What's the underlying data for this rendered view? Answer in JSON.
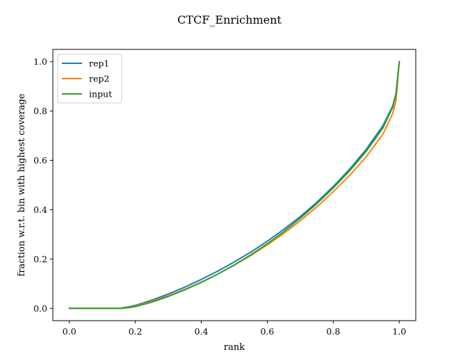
{
  "chart_data": {
    "type": "line",
    "title": "CTCF_Enrichment",
    "xlabel": "rank",
    "ylabel": "fraction w.r.t. bin with highest coverage",
    "xlim": [
      -0.05,
      1.05
    ],
    "ylim": [
      -0.05,
      1.05
    ],
    "x_ticks": [
      "0.0",
      "0.2",
      "0.4",
      "0.6",
      "0.8",
      "1.0"
    ],
    "x_tick_values": [
      0.0,
      0.2,
      0.4,
      0.6,
      0.8,
      1.0
    ],
    "y_ticks": [
      "0.0",
      "0.2",
      "0.4",
      "0.6",
      "0.8",
      "1.0"
    ],
    "y_tick_values": [
      0.0,
      0.2,
      0.4,
      0.6,
      0.8,
      1.0
    ],
    "grid": false,
    "legend_position": "upper-left",
    "x": [
      0.0,
      0.1,
      0.15,
      0.16,
      0.18,
      0.2,
      0.25,
      0.3,
      0.35,
      0.4,
      0.45,
      0.5,
      0.55,
      0.6,
      0.65,
      0.7,
      0.75,
      0.8,
      0.85,
      0.9,
      0.95,
      0.98,
      0.99,
      1.0
    ],
    "series": [
      {
        "name": "rep1",
        "color": "#1f77b4",
        "values": [
          0.0,
          0.0,
          0.0,
          0.002,
          0.006,
          0.012,
          0.033,
          0.058,
          0.086,
          0.117,
          0.151,
          0.188,
          0.228,
          0.272,
          0.32,
          0.372,
          0.43,
          0.494,
          0.565,
          0.645,
          0.74,
          0.82,
          0.87,
          1.0
        ]
      },
      {
        "name": "rep2",
        "color": "#ff7f0e",
        "values": [
          0.0,
          0.0,
          0.0,
          0.001,
          0.004,
          0.009,
          0.028,
          0.051,
          0.077,
          0.106,
          0.139,
          0.175,
          0.214,
          0.257,
          0.304,
          0.355,
          0.411,
          0.473,
          0.54,
          0.615,
          0.705,
          0.79,
          0.84,
          1.0
        ]
      },
      {
        "name": "input",
        "color": "#2ca02c",
        "values": [
          0.0,
          0.0,
          0.0,
          0.0,
          0.003,
          0.007,
          0.025,
          0.048,
          0.075,
          0.105,
          0.139,
          0.176,
          0.217,
          0.262,
          0.311,
          0.365,
          0.424,
          0.488,
          0.558,
          0.637,
          0.73,
          0.815,
          0.866,
          1.0
        ]
      }
    ]
  }
}
